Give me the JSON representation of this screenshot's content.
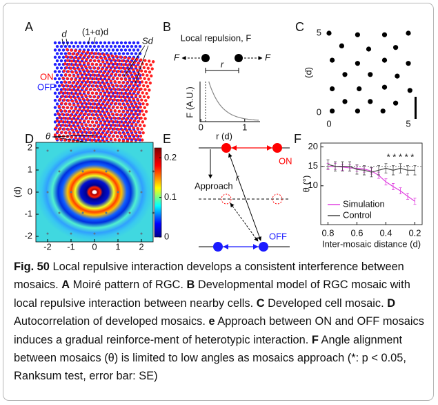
{
  "figure": {
    "A": {
      "label": "A",
      "d": "d",
      "spacing": "(1+α)d",
      "scale": "Sd",
      "on": "ON",
      "off": "OFF",
      "angle": "θ"
    },
    "B": {
      "label": "B",
      "title": "Local repulsion, F",
      "force_left": "F",
      "force_right": "F",
      "distance": "r",
      "ylabel": "F (A.U.)",
      "xlabel": "r (d)",
      "xlim": [
        -0.02,
        1.35
      ],
      "xticks": [
        0,
        1
      ]
    },
    "C": {
      "label": "C",
      "ylabel": "(d)",
      "xlim": [
        0,
        5
      ],
      "ylim": [
        0,
        5
      ],
      "xticks": [
        0,
        5
      ],
      "yticks": [
        0,
        5
      ],
      "points": [
        [
          0,
          5
        ],
        [
          1.8,
          4.9
        ],
        [
          3.5,
          4.9
        ],
        [
          5,
          5
        ],
        [
          0.8,
          4.2
        ],
        [
          2.5,
          4.0
        ],
        [
          4.2,
          4.1
        ],
        [
          0.2,
          3.3
        ],
        [
          1.8,
          3.1
        ],
        [
          3.5,
          3.3
        ],
        [
          5,
          3.1
        ],
        [
          1,
          2.4
        ],
        [
          2.6,
          2.4
        ],
        [
          4.3,
          2.3
        ],
        [
          0.2,
          1.5
        ],
        [
          1.9,
          1.5
        ],
        [
          3.5,
          1.6
        ],
        [
          5.1,
          1.4
        ],
        [
          1,
          0.7
        ],
        [
          2.6,
          0.7
        ],
        [
          4.2,
          0.6
        ],
        [
          0.2,
          0.1
        ],
        [
          1.8,
          0.1
        ],
        [
          3.4,
          0.1
        ]
      ]
    },
    "D": {
      "label": "D",
      "ylabel": "(d)",
      "xlim": [
        -2.5,
        2.5
      ],
      "ylim": [
        -2.25,
        2.25
      ],
      "xticks": [
        -2,
        -1,
        0,
        1,
        2
      ],
      "yticks": [
        -2,
        -1,
        0,
        1,
        2
      ],
      "colorbar_lim": [
        0,
        0.225
      ],
      "colorbar_ticks": [
        0,
        0.1,
        0.2
      ]
    },
    "E": {
      "label": "E",
      "on": "ON",
      "off": "OFF",
      "approach": "Approach",
      "distance": "r"
    },
    "F": {
      "label": "F",
      "chart_data": {
        "type": "line",
        "x": [
          0.8,
          0.75,
          0.7,
          0.65,
          0.6,
          0.55,
          0.5,
          0.45,
          0.4,
          0.35,
          0.3,
          0.25,
          0.2
        ],
        "series": [
          {
            "name": "Simulation",
            "color": "#e040e0",
            "values": [
              15,
              15,
              14.8,
              14.6,
              14.5,
              14.3,
              13.8,
              12.7,
              11,
              9.8,
              8.7,
              7.3,
              6
            ],
            "errors": [
              0.8,
              0.8,
              0.8,
              0.8,
              0.8,
              0.8,
              0.8,
              0.8,
              0.8,
              0.8,
              0.8,
              0.8,
              0.8
            ]
          },
          {
            "name": "Control",
            "color": "#444444",
            "values": [
              15.5,
              15,
              15,
              15,
              14.2,
              14,
              13.5,
              14,
              14.5,
              14,
              14.5,
              14,
              14
            ],
            "errors": [
              1.2,
              1.2,
              1.2,
              1.2,
              1.2,
              1.2,
              1.2,
              1.2,
              1.2,
              1.2,
              1.2,
              1.2,
              1.2
            ]
          }
        ],
        "xlim": [
          0.85,
          0.15
        ],
        "ylim": [
          0,
          21
        ],
        "xticks": [
          0.8,
          0.6,
          0.4,
          0.2
        ],
        "yticks": [
          10,
          15,
          20
        ],
        "reference_line": 15,
        "annotation": "* * * * *",
        "xlabel": "Inter-mosaic distance (d)",
        "ylabel": "θ (°)",
        "legend": "lower left"
      }
    }
  },
  "caption": {
    "parts": [
      {
        "text": "Fig. 50",
        "bold": true
      },
      {
        "text": "  Local repulsive interaction develops a consistent interference between mosaics. ",
        "bold": false
      },
      {
        "text": "A",
        "bold": true
      },
      {
        "text": " Moiré pattern of RGC. ",
        "bold": false
      },
      {
        "text": "B",
        "bold": true
      },
      {
        "text": " Developmental model of RGC mosaic with local repulsive interaction between nearby cells. ",
        "bold": false
      },
      {
        "text": "C",
        "bold": true
      },
      {
        "text": " Developed cell mosaic. ",
        "bold": false
      },
      {
        "text": "D",
        "bold": true
      },
      {
        "text": " Autocorrelation of developed mosaics. ",
        "bold": false
      },
      {
        "text": "e",
        "bold": true
      },
      {
        "text": " Approach between ON and OFF mosaics induces a gradual reinforce-ment of heterotypic interaction. ",
        "bold": false
      },
      {
        "text": "F",
        "bold": true
      },
      {
        "text": " Angle alignment between mosaics (θ) is limited to low angles as mosaics approach (*: p < 0.05, Ranksum test, error bar: SE)",
        "bold": false
      }
    ]
  }
}
